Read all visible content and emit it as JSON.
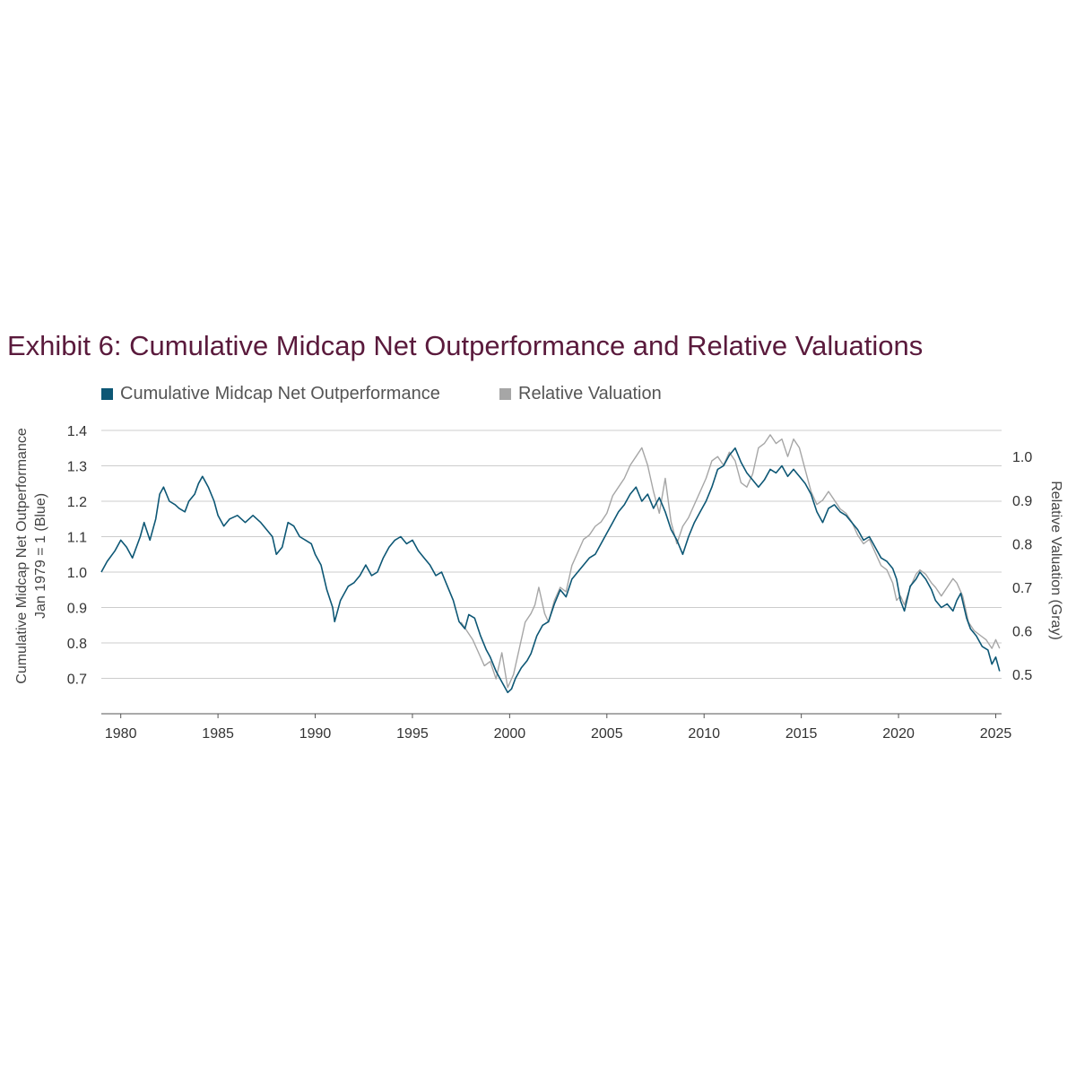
{
  "title": "Exhibit 6: Cumulative Midcap Net Outperformance and Relative Valuations",
  "legend": [
    {
      "label": "Cumulative Midcap Net Outperformance",
      "color": "#0d5775"
    },
    {
      "label": "Relative Valuation",
      "color": "#a6a6a6"
    }
  ],
  "colors": {
    "blue": "#0d5775",
    "gray": "#a6a6a6",
    "title": "#5a1a3c",
    "grid": "#cccccc"
  },
  "chart_data": {
    "type": "line",
    "ylabel_left_line1": "Cumulative Midcap Net Outperformance",
    "ylabel_left_line2": "Jan 1979 = 1 (Blue)",
    "ylabel_right": "Relative Valuation (Gray)",
    "xlim": [
      1979,
      2025.3
    ],
    "ylim_left": [
      0.6,
      1.4
    ],
    "ylim_right": [
      0.41,
      1.06
    ],
    "x_ticks": [
      "1980",
      "1985",
      "1990",
      "1995",
      "2000",
      "2005",
      "2010",
      "2015",
      "2020",
      "2025"
    ],
    "y_ticks_left": [
      "0.7",
      "0.8",
      "0.9",
      "1.0",
      "1.1",
      "1.2",
      "1.3",
      "1.4"
    ],
    "y_ticks_right": [
      "0.5",
      "0.6",
      "0.7",
      "0.8",
      "0.9",
      "1.0"
    ],
    "grid": "horizontal",
    "series": [
      {
        "name": "Cumulative Midcap Net Outperformance",
        "axis": "left",
        "color": "#0d5775",
        "points": [
          [
            1979.0,
            1.0
          ],
          [
            1979.3,
            1.03
          ],
          [
            1979.7,
            1.06
          ],
          [
            1980.0,
            1.09
          ],
          [
            1980.3,
            1.07
          ],
          [
            1980.6,
            1.04
          ],
          [
            1981.0,
            1.1
          ],
          [
            1981.2,
            1.14
          ],
          [
            1981.5,
            1.09
          ],
          [
            1981.8,
            1.15
          ],
          [
            1982.0,
            1.22
          ],
          [
            1982.2,
            1.24
          ],
          [
            1982.5,
            1.2
          ],
          [
            1982.8,
            1.19
          ],
          [
            1983.0,
            1.18
          ],
          [
            1983.3,
            1.17
          ],
          [
            1983.5,
            1.2
          ],
          [
            1983.8,
            1.22
          ],
          [
            1984.0,
            1.25
          ],
          [
            1984.2,
            1.27
          ],
          [
            1984.5,
            1.24
          ],
          [
            1984.8,
            1.2
          ],
          [
            1985.0,
            1.16
          ],
          [
            1985.3,
            1.13
          ],
          [
            1985.6,
            1.15
          ],
          [
            1986.0,
            1.16
          ],
          [
            1986.4,
            1.14
          ],
          [
            1986.8,
            1.16
          ],
          [
            1987.2,
            1.14
          ],
          [
            1987.5,
            1.12
          ],
          [
            1987.8,
            1.1
          ],
          [
            1988.0,
            1.05
          ],
          [
            1988.3,
            1.07
          ],
          [
            1988.6,
            1.14
          ],
          [
            1988.9,
            1.13
          ],
          [
            1989.2,
            1.1
          ],
          [
            1989.5,
            1.09
          ],
          [
            1989.8,
            1.08
          ],
          [
            1990.0,
            1.05
          ],
          [
            1990.3,
            1.02
          ],
          [
            1990.6,
            0.95
          ],
          [
            1990.9,
            0.9
          ],
          [
            1991.0,
            0.86
          ],
          [
            1991.3,
            0.92
          ],
          [
            1991.7,
            0.96
          ],
          [
            1992.0,
            0.97
          ],
          [
            1992.3,
            0.99
          ],
          [
            1992.6,
            1.02
          ],
          [
            1992.9,
            0.99
          ],
          [
            1993.2,
            1.0
          ],
          [
            1993.5,
            1.04
          ],
          [
            1993.8,
            1.07
          ],
          [
            1994.1,
            1.09
          ],
          [
            1994.4,
            1.1
          ],
          [
            1994.7,
            1.08
          ],
          [
            1995.0,
            1.09
          ],
          [
            1995.3,
            1.06
          ],
          [
            1995.6,
            1.04
          ],
          [
            1995.9,
            1.02
          ],
          [
            1996.2,
            0.99
          ],
          [
            1996.5,
            1.0
          ],
          [
            1996.8,
            0.96
          ],
          [
            1997.1,
            0.92
          ],
          [
            1997.4,
            0.86
          ],
          [
            1997.7,
            0.84
          ],
          [
            1997.9,
            0.88
          ],
          [
            1998.2,
            0.87
          ],
          [
            1998.5,
            0.82
          ],
          [
            1998.8,
            0.78
          ],
          [
            1999.0,
            0.76
          ],
          [
            1999.3,
            0.72
          ],
          [
            1999.6,
            0.69
          ],
          [
            1999.9,
            0.66
          ],
          [
            2000.1,
            0.67
          ],
          [
            2000.3,
            0.7
          ],
          [
            2000.6,
            0.73
          ],
          [
            2000.9,
            0.75
          ],
          [
            2001.1,
            0.77
          ],
          [
            2001.4,
            0.82
          ],
          [
            2001.7,
            0.85
          ],
          [
            2002.0,
            0.86
          ],
          [
            2002.3,
            0.91
          ],
          [
            2002.6,
            0.95
          ],
          [
            2002.9,
            0.93
          ],
          [
            2003.2,
            0.98
          ],
          [
            2003.5,
            1.0
          ],
          [
            2003.8,
            1.02
          ],
          [
            2004.1,
            1.04
          ],
          [
            2004.4,
            1.05
          ],
          [
            2004.7,
            1.08
          ],
          [
            2005.0,
            1.11
          ],
          [
            2005.3,
            1.14
          ],
          [
            2005.6,
            1.17
          ],
          [
            2005.9,
            1.19
          ],
          [
            2006.2,
            1.22
          ],
          [
            2006.5,
            1.24
          ],
          [
            2006.8,
            1.2
          ],
          [
            2007.1,
            1.22
          ],
          [
            2007.4,
            1.18
          ],
          [
            2007.7,
            1.21
          ],
          [
            2008.0,
            1.17
          ],
          [
            2008.3,
            1.12
          ],
          [
            2008.6,
            1.09
          ],
          [
            2008.9,
            1.05
          ],
          [
            2009.2,
            1.1
          ],
          [
            2009.5,
            1.14
          ],
          [
            2009.8,
            1.17
          ],
          [
            2010.1,
            1.2
          ],
          [
            2010.4,
            1.24
          ],
          [
            2010.7,
            1.29
          ],
          [
            2011.0,
            1.3
          ],
          [
            2011.3,
            1.33
          ],
          [
            2011.6,
            1.35
          ],
          [
            2011.9,
            1.31
          ],
          [
            2012.2,
            1.28
          ],
          [
            2012.5,
            1.26
          ],
          [
            2012.8,
            1.24
          ],
          [
            2013.1,
            1.26
          ],
          [
            2013.4,
            1.29
          ],
          [
            2013.7,
            1.28
          ],
          [
            2014.0,
            1.3
          ],
          [
            2014.3,
            1.27
          ],
          [
            2014.6,
            1.29
          ],
          [
            2014.9,
            1.27
          ],
          [
            2015.2,
            1.25
          ],
          [
            2015.5,
            1.22
          ],
          [
            2015.8,
            1.17
          ],
          [
            2016.1,
            1.14
          ],
          [
            2016.4,
            1.18
          ],
          [
            2016.7,
            1.19
          ],
          [
            2017.0,
            1.17
          ],
          [
            2017.3,
            1.16
          ],
          [
            2017.6,
            1.14
          ],
          [
            2017.9,
            1.12
          ],
          [
            2018.2,
            1.09
          ],
          [
            2018.5,
            1.1
          ],
          [
            2018.8,
            1.07
          ],
          [
            2019.1,
            1.04
          ],
          [
            2019.4,
            1.03
          ],
          [
            2019.7,
            1.01
          ],
          [
            2019.9,
            0.98
          ],
          [
            2020.1,
            0.92
          ],
          [
            2020.3,
            0.89
          ],
          [
            2020.6,
            0.96
          ],
          [
            2020.9,
            0.98
          ],
          [
            2021.1,
            1.0
          ],
          [
            2021.4,
            0.98
          ],
          [
            2021.7,
            0.95
          ],
          [
            2021.9,
            0.92
          ],
          [
            2022.2,
            0.9
          ],
          [
            2022.5,
            0.91
          ],
          [
            2022.8,
            0.89
          ],
          [
            2023.0,
            0.92
          ],
          [
            2023.2,
            0.94
          ],
          [
            2023.5,
            0.87
          ],
          [
            2023.7,
            0.84
          ],
          [
            2024.0,
            0.82
          ],
          [
            2024.3,
            0.79
          ],
          [
            2024.6,
            0.78
          ],
          [
            2024.8,
            0.74
          ],
          [
            2025.0,
            0.76
          ],
          [
            2025.2,
            0.72
          ]
        ]
      },
      {
        "name": "Relative Valuation",
        "axis": "right",
        "color": "#a6a6a6",
        "points": [
          [
            1997.5,
            0.62
          ],
          [
            1997.8,
            0.6
          ],
          [
            1998.1,
            0.58
          ],
          [
            1998.4,
            0.55
          ],
          [
            1998.7,
            0.52
          ],
          [
            1999.0,
            0.53
          ],
          [
            1999.3,
            0.49
          ],
          [
            1999.6,
            0.55
          ],
          [
            1999.9,
            0.47
          ],
          [
            2000.2,
            0.5
          ],
          [
            2000.5,
            0.56
          ],
          [
            2000.8,
            0.62
          ],
          [
            2001.1,
            0.64
          ],
          [
            2001.3,
            0.66
          ],
          [
            2001.5,
            0.7
          ],
          [
            2001.8,
            0.64
          ],
          [
            2002.0,
            0.62
          ],
          [
            2002.3,
            0.67
          ],
          [
            2002.6,
            0.7
          ],
          [
            2002.9,
            0.69
          ],
          [
            2003.2,
            0.75
          ],
          [
            2003.5,
            0.78
          ],
          [
            2003.8,
            0.81
          ],
          [
            2004.1,
            0.82
          ],
          [
            2004.4,
            0.84
          ],
          [
            2004.7,
            0.85
          ],
          [
            2005.0,
            0.87
          ],
          [
            2005.3,
            0.91
          ],
          [
            2005.6,
            0.93
          ],
          [
            2005.9,
            0.95
          ],
          [
            2006.2,
            0.98
          ],
          [
            2006.5,
            1.0
          ],
          [
            2006.8,
            1.02
          ],
          [
            2007.1,
            0.98
          ],
          [
            2007.4,
            0.92
          ],
          [
            2007.7,
            0.87
          ],
          [
            2008.0,
            0.95
          ],
          [
            2008.3,
            0.85
          ],
          [
            2008.6,
            0.8
          ],
          [
            2008.9,
            0.84
          ],
          [
            2009.2,
            0.86
          ],
          [
            2009.5,
            0.89
          ],
          [
            2009.8,
            0.92
          ],
          [
            2010.1,
            0.95
          ],
          [
            2010.4,
            0.99
          ],
          [
            2010.7,
            1.0
          ],
          [
            2011.0,
            0.98
          ],
          [
            2011.3,
            1.01
          ],
          [
            2011.6,
            0.99
          ],
          [
            2011.9,
            0.94
          ],
          [
            2012.2,
            0.93
          ],
          [
            2012.5,
            0.96
          ],
          [
            2012.8,
            1.02
          ],
          [
            2013.1,
            1.03
          ],
          [
            2013.4,
            1.05
          ],
          [
            2013.7,
            1.03
          ],
          [
            2014.0,
            1.04
          ],
          [
            2014.3,
            1.0
          ],
          [
            2014.6,
            1.04
          ],
          [
            2014.9,
            1.02
          ],
          [
            2015.2,
            0.97
          ],
          [
            2015.5,
            0.92
          ],
          [
            2015.8,
            0.89
          ],
          [
            2016.1,
            0.9
          ],
          [
            2016.4,
            0.92
          ],
          [
            2016.7,
            0.9
          ],
          [
            2017.0,
            0.88
          ],
          [
            2017.3,
            0.87
          ],
          [
            2017.6,
            0.85
          ],
          [
            2017.9,
            0.82
          ],
          [
            2018.2,
            0.8
          ],
          [
            2018.5,
            0.81
          ],
          [
            2018.8,
            0.78
          ],
          [
            2019.1,
            0.75
          ],
          [
            2019.4,
            0.74
          ],
          [
            2019.7,
            0.71
          ],
          [
            2019.9,
            0.67
          ],
          [
            2020.1,
            0.68
          ],
          [
            2020.3,
            0.66
          ],
          [
            2020.6,
            0.7
          ],
          [
            2020.9,
            0.73
          ],
          [
            2021.1,
            0.74
          ],
          [
            2021.4,
            0.73
          ],
          [
            2021.7,
            0.71
          ],
          [
            2021.9,
            0.7
          ],
          [
            2022.2,
            0.68
          ],
          [
            2022.5,
            0.7
          ],
          [
            2022.8,
            0.72
          ],
          [
            2023.0,
            0.71
          ],
          [
            2023.3,
            0.68
          ],
          [
            2023.6,
            0.62
          ],
          [
            2023.9,
            0.6
          ],
          [
            2024.2,
            0.59
          ],
          [
            2024.5,
            0.58
          ],
          [
            2024.8,
            0.56
          ],
          [
            2025.0,
            0.58
          ],
          [
            2025.2,
            0.56
          ]
        ]
      }
    ]
  }
}
